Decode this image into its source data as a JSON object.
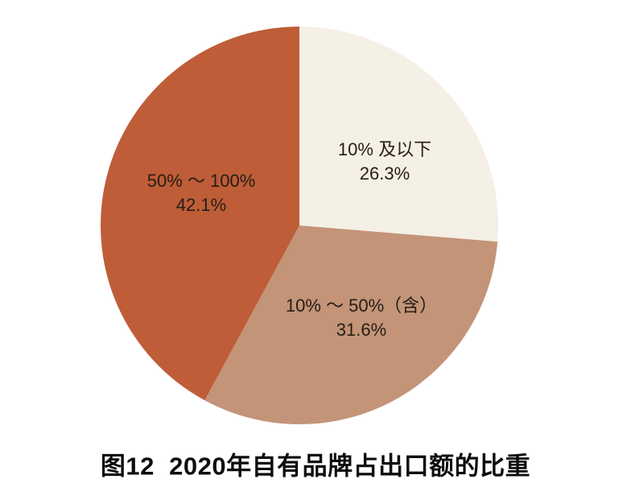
{
  "chart_data": {
    "type": "pie",
    "title": "图12  2020年自有品牌占出口额的比重",
    "unit": "percent",
    "start_angle_deg": 0,
    "direction": "clockwise",
    "legend_position": "none",
    "background": "#ffffff",
    "label_color": "#261d15",
    "slices": [
      {
        "label": "10% 及以下",
        "value": 26.3,
        "percent_label": "26.3%",
        "color": "#f4f0e6"
      },
      {
        "label": "10% ～ 50%（含）",
        "value": 31.6,
        "percent_label": "31.6%",
        "color": "#c39478"
      },
      {
        "label": "50% ～ 100%",
        "value": 42.1,
        "percent_label": "42.1%",
        "color": "#be5d38"
      }
    ]
  }
}
